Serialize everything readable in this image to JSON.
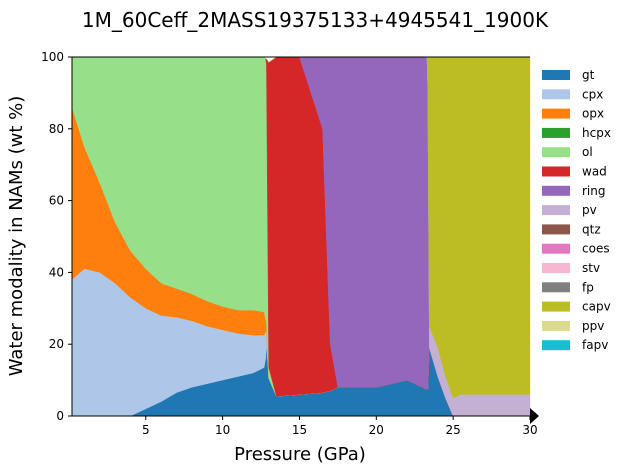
{
  "chart_data": {
    "type": "area",
    "title": "1M_60Ceff_2MASS19375133+4945541_1900K",
    "xlabel": "Pressure (GPa)",
    "ylabel": "Water modality in NAMs (wt %)",
    "xlim": [
      0.2,
      30
    ],
    "ylim": [
      0,
      100
    ],
    "xticks": [
      5,
      10,
      15,
      20,
      25,
      30
    ],
    "yticks": [
      0,
      20,
      40,
      60,
      80,
      100
    ],
    "legend_position": "right",
    "series": [
      {
        "name": "gt",
        "color": "#1f77b4",
        "values": [
          0,
          0,
          0,
          0,
          0,
          2,
          4,
          6.5,
          8,
          9,
          10,
          11,
          12,
          13.5,
          16,
          20,
          10.5,
          5.5,
          6,
          6.5,
          7,
          8,
          8,
          8,
          8,
          8.5,
          9,
          9.5,
          10,
          9,
          8,
          7.5,
          7.5,
          7.5,
          19,
          11,
          5,
          0,
          0,
          0,
          0,
          0,
          0,
          0
        ]
      },
      {
        "name": "cpx",
        "color": "#aec7e8",
        "values": [
          38,
          41,
          40,
          37,
          33,
          28,
          24,
          21,
          18.5,
          16,
          14,
          12,
          10.5,
          9,
          7.5,
          3.5,
          0,
          0,
          0,
          0,
          0,
          0,
          0,
          0,
          0,
          0,
          0,
          0,
          0,
          0,
          0,
          0,
          0,
          0,
          0,
          0,
          0,
          0,
          0,
          0,
          0,
          0,
          0,
          0
        ]
      },
      {
        "name": "opx",
        "color": "#ff7f0e",
        "values": [
          48,
          34,
          25,
          17,
          13,
          11,
          9,
          8,
          7.5,
          7,
          6.5,
          6.5,
          7,
          6.5,
          3.5,
          2.5,
          0,
          0,
          0,
          0,
          0,
          0,
          0,
          0,
          0,
          0,
          0,
          0,
          0,
          0,
          0,
          0,
          0,
          0,
          0,
          0,
          0,
          0,
          0,
          0,
          0,
          0,
          0,
          0
        ]
      },
      {
        "name": "hcpx",
        "color": "#2ca02c",
        "values": [
          0,
          0,
          0,
          0,
          0,
          0,
          0,
          0,
          0,
          0,
          0,
          0,
          0,
          0,
          0,
          0,
          0,
          0,
          0,
          0,
          0,
          0,
          0,
          0,
          0,
          0,
          0,
          0,
          0,
          0,
          0,
          0,
          0,
          0,
          0,
          0,
          0,
          0,
          0,
          0,
          0,
          0,
          0,
          0
        ]
      },
      {
        "name": "ol",
        "color": "#98df8a",
        "values": [
          14,
          25,
          35,
          46,
          54,
          59,
          63,
          64.5,
          66,
          68,
          69.5,
          70.5,
          70.5,
          71,
          72.5,
          72,
          3,
          0,
          0,
          0,
          0,
          0,
          0,
          0,
          0,
          0,
          0,
          0,
          0,
          0,
          0,
          0,
          0,
          0,
          0,
          0,
          0,
          0,
          0,
          0,
          0,
          0,
          0,
          0
        ]
      },
      {
        "name": "wad",
        "color": "#d62728",
        "values": [
          0,
          0,
          0,
          0,
          0,
          0,
          0,
          0,
          0,
          0,
          0,
          0,
          0,
          0,
          0,
          1.5,
          85,
          94.5,
          94,
          73.5,
          13,
          0,
          0,
          0,
          0,
          0,
          0,
          0,
          0,
          0,
          0,
          0,
          0,
          0,
          0,
          0,
          0,
          0,
          0,
          0,
          0,
          0,
          0,
          0
        ]
      },
      {
        "name": "ring",
        "color": "#9467bd",
        "values": [
          0,
          0,
          0,
          0,
          0,
          0,
          0,
          0,
          0,
          0,
          0,
          0,
          0,
          0,
          0,
          0,
          0,
          0,
          0,
          20,
          80,
          92,
          92,
          92,
          92,
          91.5,
          91,
          90.5,
          90,
          91,
          92,
          92.5,
          92.5,
          84,
          0,
          0,
          0,
          0,
          0,
          0,
          0,
          0,
          0,
          0
        ]
      },
      {
        "name": "pv",
        "color": "#c5b0d5",
        "values": [
          0,
          0,
          0,
          0,
          0,
          0,
          0,
          0,
          0,
          0,
          0,
          0,
          0,
          0,
          0,
          0,
          0,
          0,
          0,
          0,
          0,
          0,
          0,
          0,
          0,
          0,
          0,
          0,
          0,
          0,
          0,
          0,
          0,
          0,
          6,
          8,
          6,
          5,
          6,
          6,
          6,
          6,
          6,
          6
        ]
      },
      {
        "name": "qtz",
        "color": "#8c564b",
        "values": [
          0,
          0,
          0,
          0,
          0,
          0,
          0,
          0,
          0,
          0,
          0,
          0,
          0,
          0,
          0,
          0,
          0,
          0,
          0,
          0,
          0,
          0,
          0,
          0,
          0,
          0,
          0,
          0,
          0,
          0,
          0,
          0,
          0,
          0,
          0,
          0,
          0,
          0,
          0,
          0,
          0,
          0,
          0,
          0
        ]
      },
      {
        "name": "coes",
        "color": "#e377c2",
        "values": [
          0,
          0,
          0,
          0,
          0,
          0,
          0,
          0,
          0,
          0,
          0,
          0,
          0,
          0,
          0,
          0,
          0,
          0,
          0,
          0,
          0,
          0,
          0,
          0,
          0,
          0,
          0,
          0,
          0,
          0,
          0,
          0,
          0,
          0,
          0,
          0,
          0,
          0,
          0,
          0,
          0,
          0,
          0,
          0
        ]
      },
      {
        "name": "stv",
        "color": "#f7b6d2",
        "values": [
          0,
          0,
          0,
          0,
          0,
          0,
          0,
          0,
          0,
          0,
          0,
          0,
          0,
          0,
          0,
          0,
          0,
          0,
          0,
          0,
          0,
          0,
          0,
          0,
          0,
          0,
          0,
          0,
          0,
          0,
          0,
          0,
          0,
          0,
          0,
          0,
          0,
          0,
          0,
          0,
          0,
          0,
          0,
          0
        ]
      },
      {
        "name": "fp",
        "color": "#7f7f7f",
        "values": [
          0,
          0,
          0,
          0,
          0,
          0,
          0,
          0,
          0,
          0,
          0,
          0,
          0,
          0,
          0,
          0,
          0,
          0,
          0,
          0,
          0,
          0,
          0,
          0,
          0,
          0,
          0,
          0,
          0,
          0,
          0,
          0,
          0,
          0,
          0,
          0,
          0,
          0,
          0,
          0,
          0,
          0,
          0,
          0
        ]
      },
      {
        "name": "capv",
        "color": "#bcbd22",
        "values": [
          0,
          0,
          0,
          0,
          0,
          0,
          0,
          0,
          0,
          0,
          0,
          0,
          0,
          0,
          0,
          0,
          0,
          0,
          0,
          0,
          0,
          0,
          0,
          0,
          0,
          0,
          0,
          0,
          0,
          0,
          0,
          0,
          0,
          8.5,
          75,
          81,
          89,
          95,
          94,
          94,
          94,
          94,
          94,
          94
        ]
      },
      {
        "name": "ppv",
        "color": "#dbdb8d",
        "values": [
          0,
          0,
          0,
          0,
          0,
          0,
          0,
          0,
          0,
          0,
          0,
          0,
          0,
          0,
          0,
          0,
          0,
          0,
          0,
          0,
          0,
          0,
          0,
          0,
          0,
          0,
          0,
          0,
          0,
          0,
          0,
          0,
          0,
          0,
          0,
          0,
          0,
          0,
          0,
          0,
          0,
          0,
          0,
          0
        ]
      },
      {
        "name": "fapv",
        "color": "#17becf",
        "values": [
          0,
          0,
          0,
          0,
          0,
          0,
          0,
          0,
          0,
          0,
          0,
          0,
          0,
          0,
          0,
          0,
          0,
          0,
          0,
          0,
          0,
          0,
          0,
          0,
          0,
          0,
          0,
          0,
          0,
          0,
          0,
          0,
          0,
          0,
          0,
          0,
          0,
          0,
          0,
          0,
          0,
          0,
          0,
          0
        ]
      }
    ],
    "x": [
      0.2,
      1,
      2,
      3,
      4,
      5,
      6,
      7,
      8,
      9,
      10,
      11,
      12,
      12.7,
      12.8,
      12.85,
      13,
      13.5,
      15,
      16.5,
      17,
      17.5,
      18,
      19,
      20,
      20.5,
      21,
      21.5,
      22,
      22.5,
      23,
      23.2,
      23.3,
      23.35,
      23.45,
      24,
      24.5,
      25,
      25.5,
      26,
      27,
      28,
      29,
      30
    ]
  }
}
